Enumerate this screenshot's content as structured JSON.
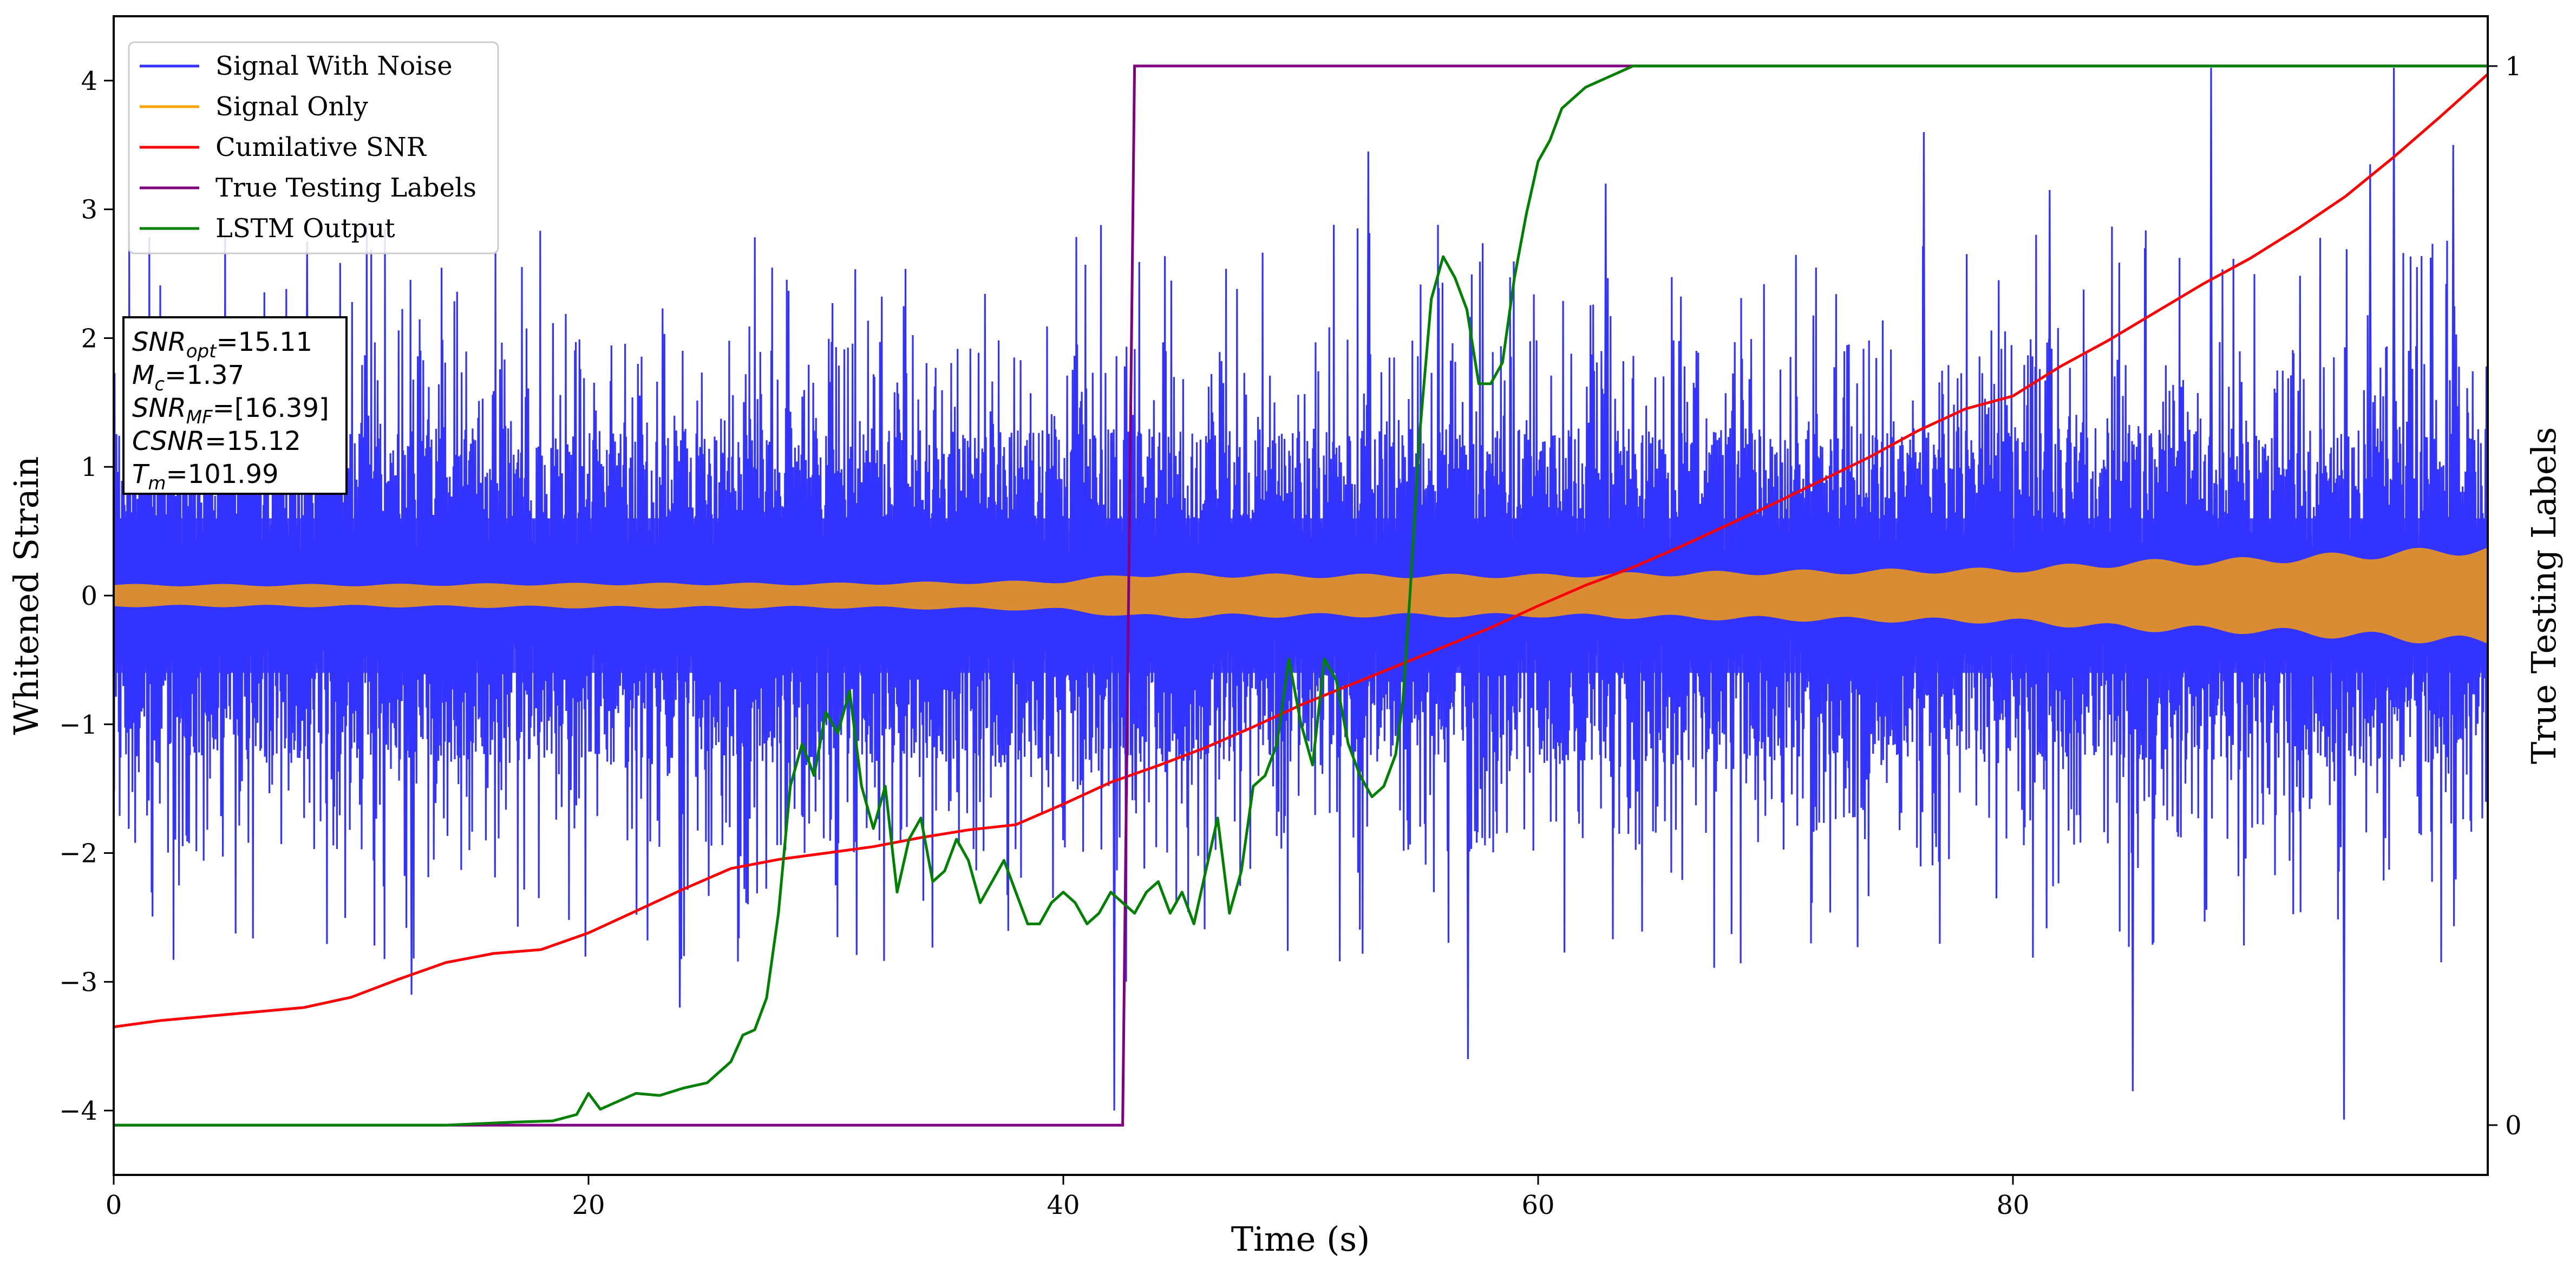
{
  "chart_data": {
    "type": "line",
    "xlabel": "Time (s)",
    "ylabel_left": "Whitened Strain",
    "ylabel_right": "True Testing Labels",
    "xlim": [
      0,
      100
    ],
    "ylim_left": [
      -4.5,
      4.5
    ],
    "ylim_right": [
      -0.047,
      1.047
    ],
    "x_ticks": [
      0,
      20,
      40,
      60,
      80
    ],
    "x_tick_labels": [
      "0",
      "20",
      "40",
      "60",
      "80"
    ],
    "y_left_ticks": [
      -4,
      -3,
      -2,
      -1,
      0,
      1,
      2,
      3,
      4
    ],
    "y_left_tick_labels": [
      "−4",
      "−3",
      "−2",
      "−1",
      "0",
      "1",
      "2",
      "3",
      "4"
    ],
    "y_right_ticks": [
      0,
      1
    ],
    "y_right_tick_labels": [
      "0",
      "1"
    ],
    "grid": false,
    "legend_position": "top-left",
    "legend": [
      {
        "label": "Signal With Noise",
        "color": "#3333ff"
      },
      {
        "label": "Signal Only",
        "color": "#ffa500"
      },
      {
        "label": "Cumilative SNR",
        "color": "#ff0000"
      },
      {
        "label": "True Testing Labels",
        "color": "#800080"
      },
      {
        "label": "LSTM Output",
        "color": "#008000"
      }
    ],
    "info_box": [
      {
        "base": "SNR",
        "sub": "opt",
        "value": "=15.11"
      },
      {
        "base": "M",
        "sub": "c",
        "value": "=1.37"
      },
      {
        "base": "SNR",
        "sub": "MF",
        "value": "=[16.39]"
      },
      {
        "base": "CSNR",
        "sub": "",
        "value": "=15.12"
      },
      {
        "base": "T",
        "sub": "m",
        "value": "=101.99"
      }
    ],
    "series": [
      {
        "name": "Signal With Noise",
        "axis": "left",
        "style": "dense-noise",
        "color": "#3333ff",
        "band_inner": 0.32,
        "band_outer": 1.3,
        "typical_peak": 2.5,
        "max_peak": 4.1,
        "min_peak": -4.0
      },
      {
        "name": "Signal Only",
        "axis": "left",
        "style": "oscillation-envelope",
        "color": "#d98c33",
        "x": [
          0,
          10,
          20,
          30,
          40,
          43,
          50,
          60,
          70,
          80,
          85,
          90,
          95,
          100
        ],
        "amplitude": [
          0.09,
          0.09,
          0.1,
          0.1,
          0.12,
          0.18,
          0.17,
          0.17,
          0.2,
          0.22,
          0.28,
          0.3,
          0.35,
          0.4
        ]
      },
      {
        "name": "Cumilative SNR",
        "axis": "left",
        "color": "#ff0000",
        "x": [
          0,
          2,
          5,
          8,
          10,
          12,
          14,
          16,
          18,
          20,
          22,
          24,
          26,
          28,
          30,
          32,
          34,
          36,
          38,
          40,
          42,
          44,
          46,
          48,
          50,
          52,
          54,
          56,
          58,
          60,
          62,
          64,
          66,
          68,
          70,
          72,
          74,
          76,
          78,
          80,
          82,
          84,
          86,
          88,
          90,
          92,
          94,
          96,
          98,
          100
        ],
        "y": [
          -3.35,
          -3.3,
          -3.25,
          -3.2,
          -3.12,
          -2.98,
          -2.85,
          -2.78,
          -2.75,
          -2.62,
          -2.45,
          -2.28,
          -2.12,
          -2.05,
          -2.0,
          -1.95,
          -1.88,
          -1.82,
          -1.78,
          -1.62,
          -1.45,
          -1.32,
          -1.18,
          -1.02,
          -0.85,
          -0.7,
          -0.55,
          -0.4,
          -0.25,
          -0.08,
          0.08,
          0.22,
          0.38,
          0.55,
          0.72,
          0.9,
          1.08,
          1.28,
          1.45,
          1.55,
          1.78,
          1.98,
          2.2,
          2.42,
          2.62,
          2.85,
          3.1,
          3.4,
          3.72,
          4.05
        ]
      },
      {
        "name": "True Testing Labels",
        "axis": "right",
        "color": "#800080",
        "x": [
          0,
          42.5,
          43.0,
          100
        ],
        "y": [
          0,
          0,
          1,
          1
        ]
      },
      {
        "name": "LSTM Output",
        "axis": "right",
        "color": "#008000",
        "x": [
          0,
          14,
          17,
          18.5,
          19.5,
          20,
          20.5,
          21,
          22,
          23,
          24,
          25,
          25.5,
          26,
          26.5,
          27,
          27.5,
          28,
          28.5,
          29,
          29.5,
          30,
          30.5,
          31,
          31.5,
          32,
          32.5,
          33,
          33.5,
          34,
          34.5,
          35,
          35.5,
          36,
          36.5,
          37,
          37.5,
          38,
          38.5,
          39,
          39.5,
          40,
          40.5,
          41,
          41.5,
          42,
          42.5,
          43,
          43.5,
          44,
          44.5,
          45,
          45.5,
          46,
          46.5,
          47,
          47.5,
          48,
          48.5,
          49,
          49.5,
          50,
          50.5,
          51,
          51.5,
          52,
          52.5,
          53,
          53.5,
          54,
          54.3,
          54.6,
          55,
          55.5,
          56,
          56.5,
          57,
          57.5,
          58,
          58.5,
          59,
          59.5,
          60,
          60.5,
          61,
          61.5,
          62,
          62.5,
          63,
          63.5,
          64,
          65,
          66,
          67,
          68,
          70,
          80,
          90,
          100
        ],
        "y": [
          0,
          0,
          0.003,
          0.004,
          0.01,
          0.03,
          0.015,
          0.02,
          0.03,
          0.028,
          0.035,
          0.04,
          0.05,
          0.06,
          0.085,
          0.09,
          0.12,
          0.2,
          0.32,
          0.36,
          0.33,
          0.39,
          0.37,
          0.41,
          0.32,
          0.28,
          0.32,
          0.22,
          0.27,
          0.29,
          0.23,
          0.24,
          0.27,
          0.25,
          0.21,
          0.23,
          0.25,
          0.22,
          0.19,
          0.19,
          0.21,
          0.22,
          0.21,
          0.19,
          0.2,
          0.22,
          0.21,
          0.2,
          0.22,
          0.23,
          0.2,
          0.22,
          0.19,
          0.24,
          0.29,
          0.2,
          0.24,
          0.32,
          0.33,
          0.36,
          0.44,
          0.38,
          0.34,
          0.44,
          0.42,
          0.36,
          0.33,
          0.31,
          0.32,
          0.35,
          0.4,
          0.5,
          0.65,
          0.78,
          0.82,
          0.8,
          0.77,
          0.7,
          0.7,
          0.72,
          0.8,
          0.86,
          0.91,
          0.93,
          0.96,
          0.97,
          0.98,
          0.985,
          0.99,
          0.995,
          1.0,
          1.0,
          1.0,
          1.0,
          1.0,
          1.0,
          1.0,
          1.0,
          1.0
        ]
      }
    ]
  }
}
